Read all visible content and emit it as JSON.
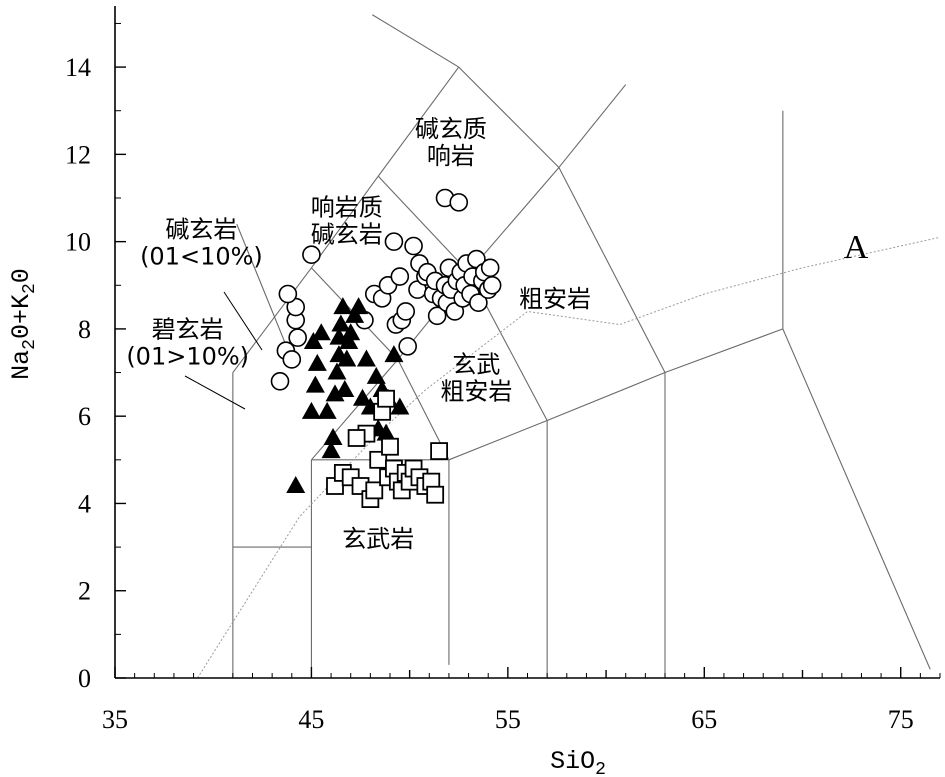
{
  "chart_data": {
    "type": "scatter",
    "title": "",
    "xlabel": "SiO",
    "xlabel_sub": "2",
    "ylabel_parts": [
      "Na",
      "2",
      "0+K",
      "2",
      "0"
    ],
    "xlim": [
      35,
      77
    ],
    "ylim": [
      0,
      15.4
    ],
    "x_ticks": [
      35,
      45,
      55,
      65,
      75
    ],
    "x_tick_labels": [
      "35",
      "45",
      "55",
      "65",
      "75"
    ],
    "y_ticks": [
      0,
      2,
      4,
      6,
      8,
      10,
      12,
      14
    ],
    "y_tick_labels": [
      "0",
      "2",
      "4",
      "6",
      "8",
      "10",
      "12",
      "14"
    ],
    "grid": false,
    "legend": "none",
    "field_labels": [
      {
        "name": "picrobasalt",
        "lines": [
          "碧玄岩",
          "(01>10%)"
        ],
        "x": 38.7,
        "y": 7.8
      },
      {
        "name": "basanite",
        "lines": [
          "碱玄岩",
          "(01<10%)"
        ],
        "x": 39.4,
        "y": 10.1
      },
      {
        "name": "phonotephrite",
        "lines": [
          "响岩质",
          "碱玄岩"
        ],
        "x": 46.8,
        "y": 10.6
      },
      {
        "name": "tephriphonolite",
        "lines": [
          "碱玄质",
          "响岩"
        ],
        "x": 52.1,
        "y": 12.4
      },
      {
        "name": "trachyandesite",
        "lines": [
          "粗安岩"
        ],
        "x": 57.4,
        "y": 8.5
      },
      {
        "name": "basaltic-trachyandesite",
        "lines": [
          "玄武",
          "粗安岩"
        ],
        "x": 53.4,
        "y": 7.0
      },
      {
        "name": "basalt",
        "lines": [
          "玄武岩"
        ],
        "x": 48.4,
        "y": 3.0
      }
    ],
    "alkaline_boundary_label": "A",
    "field_boundaries": [
      [
        [
          41,
          0
        ],
        [
          41,
          7
        ]
      ],
      [
        [
          41,
          7
        ],
        [
          45,
          9.4
        ]
      ],
      [
        [
          45,
          9.4
        ],
        [
          48.4,
          11.5
        ]
      ],
      [
        [
          48.4,
          11.5
        ],
        [
          52.5,
          14
        ]
      ],
      [
        [
          52.5,
          14
        ],
        [
          48.1,
          15.2
        ]
      ],
      [
        [
          52.5,
          14
        ],
        [
          57.6,
          11.7
        ]
      ],
      [
        [
          57.6,
          11.7
        ],
        [
          61,
          13.6
        ]
      ],
      [
        [
          57.6,
          11.7
        ],
        [
          63,
          7
        ]
      ],
      [
        [
          45,
          0
        ],
        [
          45,
          5
        ]
      ],
      [
        [
          45,
          5
        ],
        [
          52,
          5
        ]
      ],
      [
        [
          52,
          0.3
        ],
        [
          52,
          5
        ]
      ],
      [
        [
          52,
          5
        ],
        [
          57,
          5.9
        ]
      ],
      [
        [
          57,
          0
        ],
        [
          57,
          5.9
        ]
      ],
      [
        [
          57,
          5.9
        ],
        [
          63,
          7
        ]
      ],
      [
        [
          63,
          0
        ],
        [
          63,
          7
        ]
      ],
      [
        [
          63,
          7
        ],
        [
          69,
          8
        ]
      ],
      [
        [
          69,
          8
        ],
        [
          69,
          13
        ]
      ],
      [
        [
          69,
          8
        ],
        [
          76.5,
          0.2
        ]
      ],
      [
        [
          45,
          5
        ],
        [
          49.4,
          7.3
        ]
      ],
      [
        [
          49.4,
          7.3
        ],
        [
          53,
          9.3
        ]
      ],
      [
        [
          53,
          9.3
        ],
        [
          57.6,
          11.7
        ]
      ],
      [
        [
          49.4,
          7.3
        ],
        [
          52,
          5
        ]
      ],
      [
        [
          53,
          9.3
        ],
        [
          57,
          5.9
        ]
      ],
      [
        [
          41,
          3
        ],
        [
          45,
          3
        ]
      ],
      [
        [
          44,
          7.3
        ],
        [
          41.2,
          10.4
        ]
      ],
      [
        [
          45,
          9.4
        ],
        [
          49.4,
          7.3
        ]
      ],
      [
        [
          48.4,
          11.5
        ],
        [
          53,
          9.3
        ]
      ]
    ],
    "alkaline_boundary": [
      [
        39.2,
        0
      ],
      [
        44.4,
        3.7
      ],
      [
        48.4,
        5.6
      ],
      [
        50.8,
        6.6
      ],
      [
        56,
        8.4
      ],
      [
        60.7,
        8.1
      ],
      [
        65,
        8.8
      ],
      [
        70,
        9.4
      ],
      [
        77,
        10.1
      ]
    ],
    "series": [
      {
        "marker": "circle",
        "points": [
          [
            43.4,
            6.8
          ],
          [
            43.7,
            7.5
          ],
          [
            44.0,
            7.3
          ],
          [
            44.3,
            7.8
          ],
          [
            44.2,
            8.2
          ],
          [
            44.2,
            8.5
          ],
          [
            43.8,
            8.8
          ],
          [
            45.0,
            9.7
          ],
          [
            47.7,
            8.2
          ],
          [
            48.2,
            8.8
          ],
          [
            48.6,
            8.7
          ],
          [
            48.9,
            9.0
          ],
          [
            49.2,
            10.0
          ],
          [
            49.5,
            9.2
          ],
          [
            49.3,
            8.1
          ],
          [
            49.6,
            8.2
          ],
          [
            49.8,
            8.4
          ],
          [
            49.9,
            7.6
          ],
          [
            50.2,
            9.9
          ],
          [
            50.4,
            8.9
          ],
          [
            50.5,
            9.5
          ],
          [
            50.8,
            9.2
          ],
          [
            50.9,
            9.3
          ],
          [
            51.2,
            8.8
          ],
          [
            51.3,
            9.1
          ],
          [
            51.4,
            8.3
          ],
          [
            51.6,
            8.7
          ],
          [
            51.8,
            9.0
          ],
          [
            51.9,
            8.6
          ],
          [
            52.0,
            9.4
          ],
          [
            52.1,
            8.9
          ],
          [
            52.3,
            8.4
          ],
          [
            52.4,
            9.1
          ],
          [
            52.6,
            9.3
          ],
          [
            52.7,
            8.7
          ],
          [
            52.8,
            9.0
          ],
          [
            52.9,
            9.5
          ],
          [
            53.1,
            8.8
          ],
          [
            53.2,
            9.2
          ],
          [
            53.4,
            9.6
          ],
          [
            53.5,
            8.6
          ],
          [
            53.7,
            9.1
          ],
          [
            53.8,
            9.3
          ],
          [
            54.0,
            8.9
          ],
          [
            54.1,
            9.4
          ],
          [
            54.2,
            9.0
          ],
          [
            51.8,
            11.0
          ],
          [
            52.5,
            10.9
          ]
        ]
      },
      {
        "marker": "triangle",
        "points": [
          [
            44.2,
            4.4
          ],
          [
            45.0,
            6.1
          ],
          [
            45.2,
            6.7
          ],
          [
            45.3,
            7.2
          ],
          [
            45.1,
            7.7
          ],
          [
            45.5,
            7.9
          ],
          [
            45.8,
            6.1
          ],
          [
            46.0,
            5.2
          ],
          [
            46.1,
            5.5
          ],
          [
            46.2,
            6.5
          ],
          [
            46.3,
            7.0
          ],
          [
            46.4,
            7.4
          ],
          [
            46.4,
            7.8
          ],
          [
            46.5,
            8.1
          ],
          [
            46.6,
            8.5
          ],
          [
            46.7,
            6.6
          ],
          [
            46.8,
            7.3
          ],
          [
            46.9,
            7.7
          ],
          [
            47.0,
            7.9
          ],
          [
            47.2,
            8.3
          ],
          [
            47.4,
            8.5
          ],
          [
            47.6,
            6.4
          ],
          [
            47.8,
            7.3
          ],
          [
            48.0,
            6.2
          ],
          [
            48.3,
            6.9
          ],
          [
            48.6,
            6.6
          ],
          [
            48.9,
            6.4
          ],
          [
            49.2,
            7.4
          ],
          [
            49.5,
            6.2
          ],
          [
            48.4,
            5.7
          ],
          [
            48.8,
            5.6
          ]
        ]
      },
      {
        "marker": "square",
        "points": [
          [
            46.2,
            4.4
          ],
          [
            46.6,
            4.7
          ],
          [
            47.0,
            4.6
          ],
          [
            47.5,
            4.4
          ],
          [
            47.8,
            5.6
          ],
          [
            48.0,
            4.1
          ],
          [
            48.2,
            4.3
          ],
          [
            48.4,
            5.0
          ],
          [
            48.6,
            6.1
          ],
          [
            48.8,
            6.4
          ],
          [
            48.9,
            4.6
          ],
          [
            49.0,
            5.3
          ],
          [
            49.2,
            4.8
          ],
          [
            49.4,
            4.5
          ],
          [
            49.6,
            4.3
          ],
          [
            49.8,
            4.7
          ],
          [
            50.0,
            4.5
          ],
          [
            50.2,
            4.8
          ],
          [
            50.5,
            4.6
          ],
          [
            50.8,
            4.4
          ],
          [
            51.1,
            4.5
          ],
          [
            51.3,
            4.2
          ],
          [
            51.5,
            5.2
          ],
          [
            47.3,
            5.5
          ]
        ]
      }
    ]
  }
}
